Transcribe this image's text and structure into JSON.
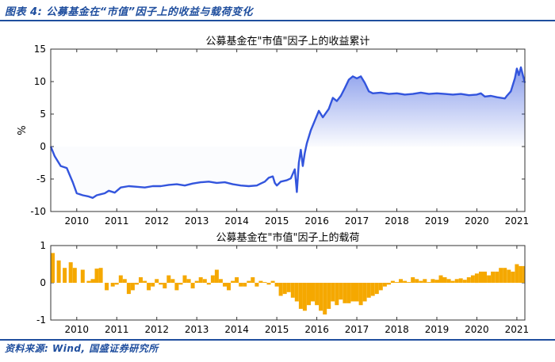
{
  "figure": {
    "title": "图表 4: 公募基金在“市值”因子上的收益与载荷变化",
    "source": "资料来源: Wind, 国盛证券研究所"
  },
  "chart_data": [
    {
      "type": "area",
      "title": "公募基金在\"市值\"因子上的收益累计",
      "xlabel": "",
      "ylabel": "%",
      "xlim": [
        2009.35,
        2021.2
      ],
      "ylim": [
        -10,
        15
      ],
      "yticks": [
        -10,
        -5,
        0,
        5,
        10,
        15
      ],
      "xticks": [
        2010,
        2011,
        2012,
        2013,
        2014,
        2015,
        2016,
        2017,
        2018,
        2019,
        2020,
        2021
      ],
      "grid": false,
      "color": "#3355dd",
      "series": [
        {
          "values": [
            [
              2009.35,
              0
            ],
            [
              2009.45,
              -1.5
            ],
            [
              2009.6,
              -3.0
            ],
            [
              2009.75,
              -3.3
            ],
            [
              2009.9,
              -5.5
            ],
            [
              2010.0,
              -7.2
            ],
            [
              2010.15,
              -7.5
            ],
            [
              2010.3,
              -7.7
            ],
            [
              2010.4,
              -7.9
            ],
            [
              2010.5,
              -7.5
            ],
            [
              2010.7,
              -7.2
            ],
            [
              2010.8,
              -6.8
            ],
            [
              2010.95,
              -7.1
            ],
            [
              2011.1,
              -6.3
            ],
            [
              2011.3,
              -6.1
            ],
            [
              2011.5,
              -6.2
            ],
            [
              2011.7,
              -6.3
            ],
            [
              2011.9,
              -6.1
            ],
            [
              2012.1,
              -6.1
            ],
            [
              2012.3,
              -5.9
            ],
            [
              2012.5,
              -5.8
            ],
            [
              2012.7,
              -6.0
            ],
            [
              2012.9,
              -5.7
            ],
            [
              2013.1,
              -5.5
            ],
            [
              2013.3,
              -5.4
            ],
            [
              2013.5,
              -5.6
            ],
            [
              2013.7,
              -5.5
            ],
            [
              2013.9,
              -5.8
            ],
            [
              2014.1,
              -6.0
            ],
            [
              2014.3,
              -6.1
            ],
            [
              2014.5,
              -6.0
            ],
            [
              2014.6,
              -5.7
            ],
            [
              2014.7,
              -5.4
            ],
            [
              2014.8,
              -4.8
            ],
            [
              2014.9,
              -4.6
            ],
            [
              2014.95,
              -5.6
            ],
            [
              2015.0,
              -6.0
            ],
            [
              2015.1,
              -5.4
            ],
            [
              2015.25,
              -5.2
            ],
            [
              2015.35,
              -4.9
            ],
            [
              2015.45,
              -3.5
            ],
            [
              2015.5,
              -7.0
            ],
            [
              2015.55,
              -2.5
            ],
            [
              2015.6,
              -0.5
            ],
            [
              2015.65,
              -3.0
            ],
            [
              2015.7,
              -1.0
            ],
            [
              2015.75,
              0.5
            ],
            [
              2015.85,
              2.5
            ],
            [
              2015.95,
              4.0
            ],
            [
              2016.05,
              5.5
            ],
            [
              2016.15,
              4.5
            ],
            [
              2016.3,
              5.8
            ],
            [
              2016.4,
              7.5
            ],
            [
              2016.5,
              7.0
            ],
            [
              2016.6,
              7.8
            ],
            [
              2016.7,
              9.0
            ],
            [
              2016.8,
              10.3
            ],
            [
              2016.9,
              10.8
            ],
            [
              2017.0,
              10.5
            ],
            [
              2017.1,
              10.8
            ],
            [
              2017.2,
              9.8
            ],
            [
              2017.3,
              8.5
            ],
            [
              2017.4,
              8.2
            ],
            [
              2017.6,
              8.3
            ],
            [
              2017.8,
              8.1
            ],
            [
              2018.0,
              8.2
            ],
            [
              2018.2,
              8.0
            ],
            [
              2018.4,
              8.1
            ],
            [
              2018.6,
              8.3
            ],
            [
              2018.8,
              8.1
            ],
            [
              2019.0,
              8.2
            ],
            [
              2019.2,
              8.1
            ],
            [
              2019.4,
              8.0
            ],
            [
              2019.6,
              8.1
            ],
            [
              2019.8,
              7.9
            ],
            [
              2020.0,
              8.0
            ],
            [
              2020.1,
              8.2
            ],
            [
              2020.2,
              7.7
            ],
            [
              2020.35,
              7.8
            ],
            [
              2020.5,
              7.6
            ],
            [
              2020.7,
              7.4
            ],
            [
              2020.75,
              7.8
            ],
            [
              2020.85,
              8.5
            ],
            [
              2020.95,
              10.5
            ],
            [
              2021.0,
              12.0
            ],
            [
              2021.05,
              11.0
            ],
            [
              2021.1,
              12.2
            ],
            [
              2021.15,
              11.0
            ],
            [
              2021.2,
              9.8
            ]
          ]
        }
      ]
    },
    {
      "type": "bar",
      "title": "公募基金在\"市值\"因子上的载荷",
      "xlabel": "",
      "ylabel": "",
      "xlim": [
        2009.35,
        2021.2
      ],
      "ylim": [
        -1,
        1
      ],
      "yticks": [
        -1,
        0,
        1
      ],
      "xticks": [
        2010,
        2011,
        2012,
        2013,
        2014,
        2015,
        2016,
        2017,
        2018,
        2019,
        2020,
        2021
      ],
      "grid": false,
      "color": "#f5a800",
      "series": [
        {
          "values": [
            [
              2009.35,
              0.8
            ],
            [
              2009.5,
              0.6
            ],
            [
              2009.65,
              0.4
            ],
            [
              2009.8,
              0.55
            ],
            [
              2009.9,
              0.4
            ],
            [
              2010.1,
              0.35
            ],
            [
              2010.25,
              0.05
            ],
            [
              2010.35,
              0.1
            ],
            [
              2010.45,
              0.38
            ],
            [
              2010.55,
              0.4
            ],
            [
              2010.7,
              -0.2
            ],
            [
              2010.85,
              -0.1
            ],
            [
              2010.95,
              -0.05
            ],
            [
              2011.05,
              0.2
            ],
            [
              2011.15,
              0.1
            ],
            [
              2011.25,
              -0.3
            ],
            [
              2011.35,
              -0.2
            ],
            [
              2011.45,
              -0.05
            ],
            [
              2011.55,
              0.15
            ],
            [
              2011.65,
              0.05
            ],
            [
              2011.75,
              -0.2
            ],
            [
              2011.85,
              -0.1
            ],
            [
              2011.95,
              0.1
            ],
            [
              2012.05,
              -0.05
            ],
            [
              2012.15,
              -0.15
            ],
            [
              2012.25,
              0.2
            ],
            [
              2012.35,
              0.1
            ],
            [
              2012.45,
              -0.2
            ],
            [
              2012.55,
              -0.05
            ],
            [
              2012.65,
              0.2
            ],
            [
              2012.75,
              0.1
            ],
            [
              2012.85,
              -0.15
            ],
            [
              2012.95,
              0.05
            ],
            [
              2013.05,
              0.15
            ],
            [
              2013.15,
              0.1
            ],
            [
              2013.25,
              -0.05
            ],
            [
              2013.35,
              0.2
            ],
            [
              2013.45,
              0.35
            ],
            [
              2013.55,
              0.1
            ],
            [
              2013.65,
              -0.1
            ],
            [
              2013.75,
              -0.2
            ],
            [
              2013.85,
              0.05
            ],
            [
              2013.95,
              0.15
            ],
            [
              2014.05,
              -0.1
            ],
            [
              2014.15,
              -0.1
            ],
            [
              2014.25,
              0.05
            ],
            [
              2014.35,
              0.15
            ],
            [
              2014.45,
              -0.1
            ],
            [
              2014.55,
              0.05
            ],
            [
              2014.65,
              0.02
            ],
            [
              2014.75,
              -0.05
            ],
            [
              2014.85,
              0.05
            ],
            [
              2014.95,
              -0.1
            ],
            [
              2015.05,
              -0.35
            ],
            [
              2015.15,
              -0.3
            ],
            [
              2015.25,
              -0.25
            ],
            [
              2015.35,
              -0.4
            ],
            [
              2015.45,
              -0.5
            ],
            [
              2015.55,
              -0.7
            ],
            [
              2015.65,
              -0.75
            ],
            [
              2015.75,
              -0.6
            ],
            [
              2015.85,
              -0.5
            ],
            [
              2015.95,
              -0.6
            ],
            [
              2016.05,
              -0.75
            ],
            [
              2016.15,
              -0.85
            ],
            [
              2016.25,
              -0.7
            ],
            [
              2016.35,
              -0.5
            ],
            [
              2016.45,
              -0.6
            ],
            [
              2016.55,
              -0.45
            ],
            [
              2016.65,
              -0.55
            ],
            [
              2016.75,
              -0.55
            ],
            [
              2016.85,
              -0.5
            ],
            [
              2016.95,
              -0.5
            ],
            [
              2017.05,
              -0.6
            ],
            [
              2017.15,
              -0.5
            ],
            [
              2017.25,
              -0.4
            ],
            [
              2017.35,
              -0.35
            ],
            [
              2017.45,
              -0.3
            ],
            [
              2017.55,
              -0.2
            ],
            [
              2017.65,
              -0.1
            ],
            [
              2017.75,
              -0.05
            ],
            [
              2017.85,
              0.05
            ],
            [
              2017.95,
              0.02
            ],
            [
              2018.05,
              0.1
            ],
            [
              2018.15,
              0.05
            ],
            [
              2018.25,
              0.02
            ],
            [
              2018.35,
              0.15
            ],
            [
              2018.45,
              0.1
            ],
            [
              2018.55,
              0.05
            ],
            [
              2018.65,
              0.1
            ],
            [
              2018.75,
              0.02
            ],
            [
              2018.85,
              0.1
            ],
            [
              2018.95,
              0.08
            ],
            [
              2019.05,
              0.2
            ],
            [
              2019.15,
              0.15
            ],
            [
              2019.25,
              0.1
            ],
            [
              2019.35,
              0.05
            ],
            [
              2019.45,
              0.1
            ],
            [
              2019.55,
              0.12
            ],
            [
              2019.65,
              0.08
            ],
            [
              2019.75,
              0.15
            ],
            [
              2019.85,
              0.2
            ],
            [
              2019.95,
              0.25
            ],
            [
              2020.05,
              0.3
            ],
            [
              2020.15,
              0.3
            ],
            [
              2020.25,
              0.2
            ],
            [
              2020.35,
              0.3
            ],
            [
              2020.45,
              0.3
            ],
            [
              2020.55,
              0.4
            ],
            [
              2020.65,
              0.4
            ],
            [
              2020.75,
              0.35
            ],
            [
              2020.85,
              0.3
            ],
            [
              2020.95,
              0.5
            ],
            [
              2021.05,
              0.45
            ],
            [
              2021.15,
              0.45
            ]
          ]
        }
      ]
    }
  ]
}
